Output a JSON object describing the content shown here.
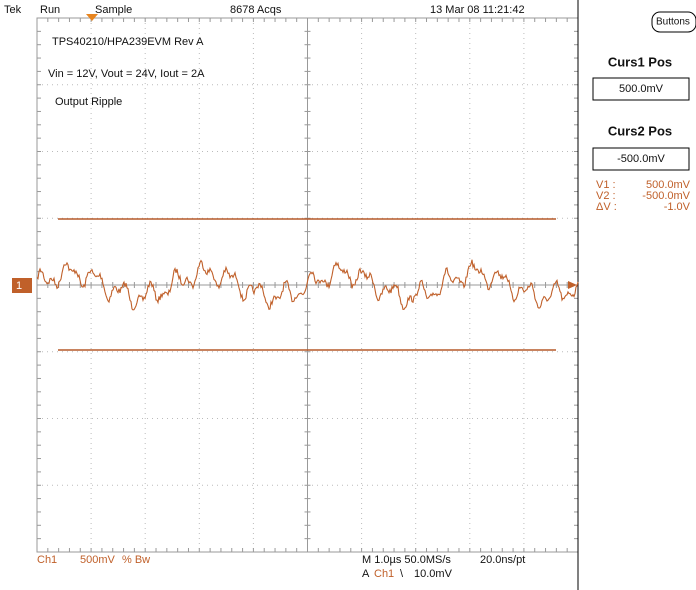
{
  "top_bar": {
    "brand": "Tek",
    "state": "Run",
    "mode": "Sample",
    "acquisitions": "8678 Acqs",
    "timestamp": "13 Mar 08 11:21:42"
  },
  "annotations": [
    "TPS40210/HPA239EVM Rev A",
    "Vin = 12V, Vout = 24V, Iout = 2A",
    "Output Ripple"
  ],
  "channel_marker": "1",
  "side_panel": {
    "button": "Buttons",
    "cursor1": {
      "title": "Curs1 Pos",
      "value": "500.0mV"
    },
    "cursor2": {
      "title": "Curs2 Pos",
      "value": "-500.0mV"
    },
    "readouts": [
      {
        "label": "V1 :",
        "value": "500.0mV"
      },
      {
        "label": "V2 :",
        "value": "-500.0mV"
      },
      {
        "label": "ΔV :",
        "value": "-1.0V"
      }
    ]
  },
  "bottom": {
    "channel": "Ch1",
    "scale": "500mV",
    "bandwidth": "% Bw",
    "timebase": "M 1.0µs 50.0MS/s",
    "resolution": "20.0ns/pt",
    "trigger": {
      "prefix": "A",
      "source": "Ch1",
      "slope": "\\",
      "level": "10.0mV"
    }
  }
}
